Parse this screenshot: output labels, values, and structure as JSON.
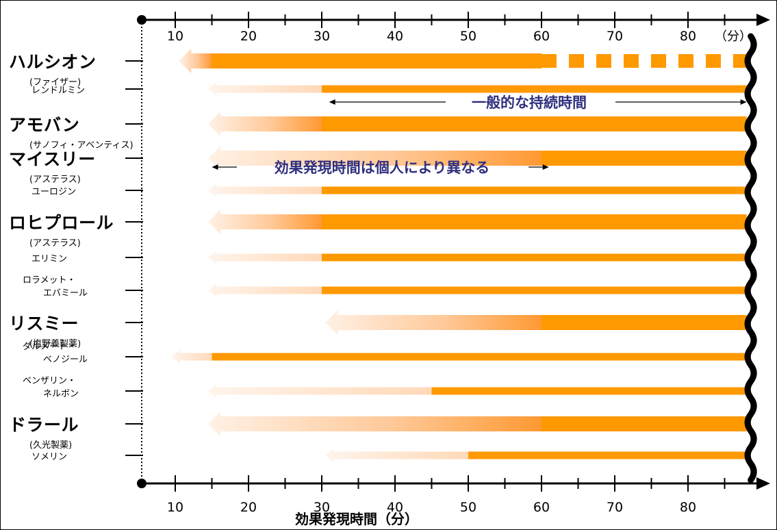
{
  "chart_data": {
    "type": "bar",
    "xlabel": "効果発現時間（分）",
    "top_axis_unit": "（分）",
    "x_ticks": [
      10,
      20,
      30,
      40,
      50,
      60,
      70,
      80
    ],
    "xlim": [
      5,
      90
    ],
    "annotations": {
      "duration": "一般的な持続時間",
      "onset": "効果発現時間は個人により異なる"
    },
    "colors": {
      "bar": "#ff9900",
      "onset_arrow_light": "#fde8d8",
      "onset_arrow_dark": "#ff9933",
      "annotation_text": "#2f2f7f",
      "axis": "#000000"
    },
    "drugs": [
      {
        "name": "ハルシオン",
        "maker": "(ファイザー)",
        "emphasis": true,
        "onset_start": 15,
        "onset_end": 10.5,
        "bar_start": 15,
        "solid_end": 60,
        "dashed_end": 88
      },
      {
        "name": "レンドルミン",
        "maker": "",
        "emphasis": false,
        "onset_start": 30,
        "onset_end": 14.5,
        "bar_start": 30,
        "solid_end": 88
      },
      {
        "name": "アモバン",
        "maker": "(サノフィ・アベンティス)",
        "emphasis": true,
        "onset_start": 30,
        "onset_end": 14.5,
        "bar_start": 30,
        "solid_end": 88
      },
      {
        "name": "マイスリー",
        "maker": "(アステラス)",
        "emphasis": true,
        "onset_start": 60,
        "onset_end": 14.5,
        "bar_start": 60,
        "solid_end": 88
      },
      {
        "name": "ユーロジン",
        "maker": "",
        "emphasis": false,
        "onset_start": 30,
        "onset_end": 14.5,
        "bar_start": 30,
        "solid_end": 88
      },
      {
        "name": "ロヒプロール",
        "maker": "(アステラス)",
        "emphasis": true,
        "onset_start": 30,
        "onset_end": 14.5,
        "bar_start": 30,
        "solid_end": 88
      },
      {
        "name": "エリミン",
        "maker": "",
        "emphasis": false,
        "onset_start": 30,
        "onset_end": 14.5,
        "bar_start": 30,
        "solid_end": 88
      },
      {
        "name": "ロラメット・",
        "maker": "エバミール",
        "emphasis": false,
        "onset_start": 30,
        "onset_end": 14.5,
        "bar_start": 30,
        "solid_end": 88
      },
      {
        "name": "リスミー",
        "maker": "(塩野義製薬)",
        "emphasis": true,
        "onset_start": 60,
        "onset_end": 30.5,
        "bar_start": 60,
        "solid_end": 88
      },
      {
        "name": "ダルメート・",
        "maker": "ベノジール",
        "emphasis": false,
        "onset_start": 15,
        "onset_end": 9.5,
        "bar_start": 15,
        "solid_end": 88
      },
      {
        "name": "ベンザリン・",
        "maker": "ネルボン",
        "emphasis": false,
        "onset_start": 45,
        "onset_end": 14.5,
        "bar_start": 45,
        "solid_end": 88
      },
      {
        "name": "ドラール",
        "maker": "(久光製薬)",
        "emphasis": true,
        "onset_start": 60,
        "onset_end": 14.5,
        "bar_start": 60,
        "solid_end": 88
      },
      {
        "name": "ソメリン",
        "maker": "",
        "emphasis": false,
        "onset_start": 50,
        "onset_end": 30.5,
        "bar_start": 50,
        "solid_end": 88
      }
    ]
  }
}
